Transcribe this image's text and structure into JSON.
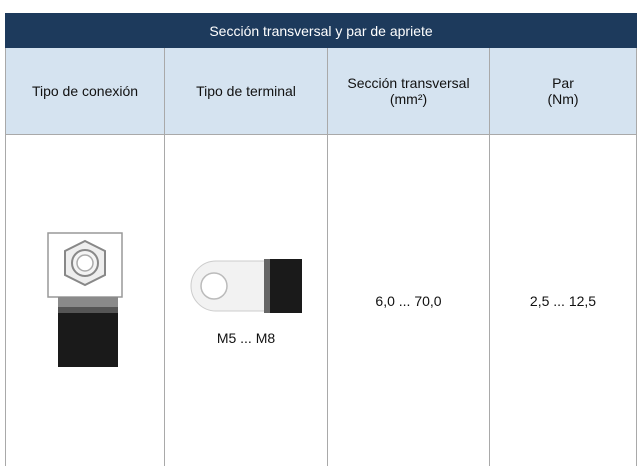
{
  "title": "Sección transversal y par de apriete",
  "header": [
    [
      "Tipo de conexión"
    ],
    [
      "Tipo de terminal"
    ],
    [
      "Sección transversal",
      "(mm²)"
    ],
    [
      "Par",
      "(Nm)"
    ]
  ],
  "row": {
    "terminal_label": "M5 ... M8",
    "section": "6,0 ... 70,0",
    "torque": "2,5 ... 12,5"
  }
}
